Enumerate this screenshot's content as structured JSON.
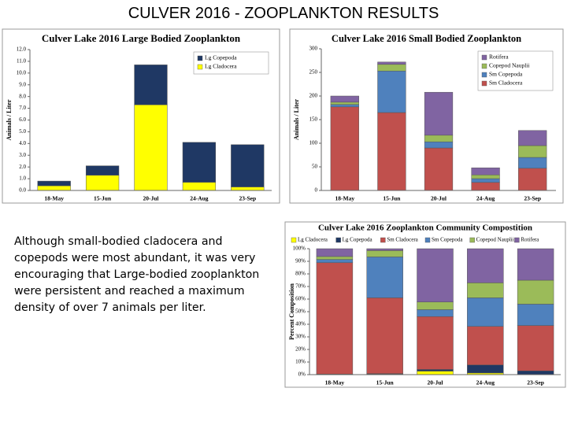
{
  "title": "CULVER 2016 - ZOOPLANKTON RESULTS",
  "text": "Although small-bodied cladocera and copepods were most abundant, it was very encouraging that Large-bodied zooplankton were persistent and reached a maximum density of over 7 animals per liter.",
  "chart_data": [
    {
      "type": "bar",
      "stacked": true,
      "grid": false,
      "legend": "top-right",
      "title": "Culver Lake 2016 Large Bodied Zooplankton",
      "y_label": "Animals / Liter",
      "categories": [
        "18-May",
        "15-Jun",
        "20-Jul",
        "24-Aug",
        "23-Sep"
      ],
      "series": [
        {
          "name": "Lg Cladocera",
          "color": "#ffff00",
          "values": [
            0.4,
            1.3,
            7.3,
            0.7,
            0.3
          ]
        },
        {
          "name": "Lg Copepoda",
          "color": "#1f3864",
          "values": [
            0.4,
            0.8,
            3.4,
            3.4,
            3.6
          ]
        }
      ],
      "ylim": [
        0,
        12
      ],
      "yticks": [
        {
          "value": 0,
          "label": "0.0"
        },
        {
          "value": 1,
          "label": "1.0"
        },
        {
          "value": 2,
          "label": "2.0"
        },
        {
          "value": 3,
          "label": "3.0"
        },
        {
          "value": 4,
          "label": "4.0"
        },
        {
          "value": 5,
          "label": "5.0"
        },
        {
          "value": 6,
          "label": "6.0"
        },
        {
          "value": 7,
          "label": "7.0"
        },
        {
          "value": 8,
          "label": "8.0"
        },
        {
          "value": 9,
          "label": "9.0"
        },
        {
          "value": 10,
          "label": "10.0"
        },
        {
          "value": 11,
          "label": "11.0"
        },
        {
          "value": 12,
          "label": "12.0"
        }
      ]
    },
    {
      "type": "bar",
      "stacked": true,
      "grid": false,
      "legend": "top-right",
      "title": "Culver Lake 2016 Small Bodied Zooplankton",
      "y_label": "Animals / Liter",
      "categories": [
        "18-May",
        "15-Jun",
        "20-Jul",
        "24-Aug",
        "23-Sep"
      ],
      "series": [
        {
          "name": "Sm Cladocera",
          "color": "#c0504d",
          "values": [
            177,
            165,
            90,
            17,
            47
          ]
        },
        {
          "name": "Sm Copepoda",
          "color": "#4f81bd",
          "values": [
            5,
            88,
            13,
            8,
            23
          ]
        },
        {
          "name": "Copepod Nauplii",
          "color": "#9bbb59",
          "values": [
            5,
            14,
            14,
            8,
            25
          ]
        },
        {
          "name": "Rotifera",
          "color": "#8064a2",
          "values": [
            13,
            5,
            91,
            15,
            32
          ]
        }
      ],
      "ylim": [
        0,
        300
      ],
      "yticks": [
        0,
        50,
        100,
        150,
        200,
        250,
        300
      ]
    },
    {
      "type": "bar",
      "stacked": true,
      "grid": false,
      "legend": "top",
      "title": "Culver Lake 2016 Zooplankton Community Compostition",
      "y_label": "Percent Composition",
      "categories": [
        "18-May",
        "15-Jun",
        "20-Jul",
        "24-Aug",
        "23-Sep"
      ],
      "series": [
        {
          "name": "Lg Cladocera",
          "color": "#ffff00",
          "values": [
            0.2,
            0.5,
            2.8,
            1.3,
            0.2
          ]
        },
        {
          "name": "Lg Copepoda",
          "color": "#1f3864",
          "values": [
            0.2,
            0.3,
            1.3,
            6.4,
            2.8
          ]
        },
        {
          "name": "Sm Cladocera",
          "color": "#c0504d",
          "values": [
            88.5,
            60.2,
            42,
            30.6,
            36
          ]
        },
        {
          "name": "Sm Copepoda",
          "color": "#4f81bd",
          "values": [
            2.6,
            32.5,
            5.5,
            22.7,
            17
          ]
        },
        {
          "name": "Copepod Nauplii",
          "color": "#9bbb59",
          "values": [
            2.3,
            5.0,
            6.1,
            11.9,
            19
          ]
        },
        {
          "name": "Rotifera",
          "color": "#8064a2",
          "values": [
            6.2,
            1.5,
            42.3,
            27.1,
            25
          ]
        }
      ],
      "ylim": [
        0,
        100
      ],
      "yticks": [
        {
          "value": 0,
          "label": "0%"
        },
        {
          "value": 10,
          "label": "10%"
        },
        {
          "value": 20,
          "label": "20%"
        },
        {
          "value": 30,
          "label": "30%"
        },
        {
          "value": 40,
          "label": "40%"
        },
        {
          "value": 50,
          "label": "50%"
        },
        {
          "value": 60,
          "label": "60%"
        },
        {
          "value": 70,
          "label": "70%"
        },
        {
          "value": 80,
          "label": "80%"
        },
        {
          "value": 90,
          "label": "90%"
        },
        {
          "value": 100,
          "label": "100%"
        }
      ]
    }
  ]
}
